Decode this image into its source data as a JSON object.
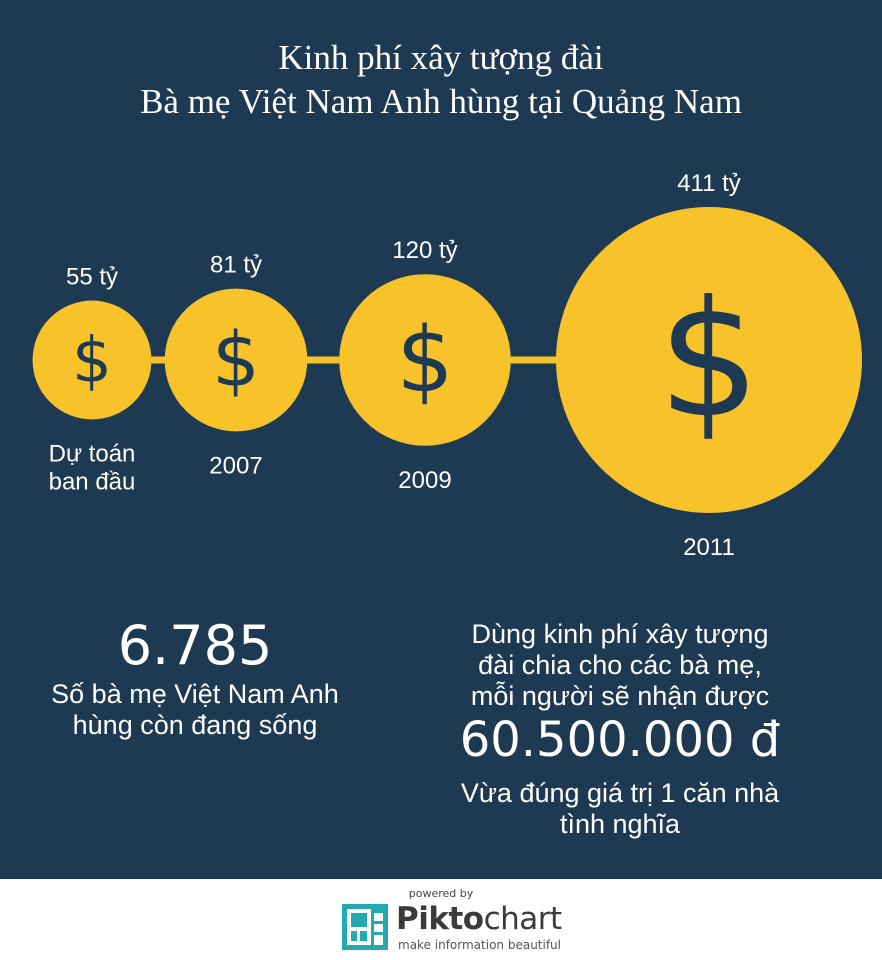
{
  "title": {
    "line1": "Kinh phí xây tượng đài",
    "line2": "Bà mẹ Việt Nam Anh hùng tại Quảng Nam"
  },
  "currency_symbol": "$",
  "chart_data": {
    "type": "bubble",
    "categories": [
      "Dự toán ban đầu",
      "2007",
      "2009",
      "2011"
    ],
    "values": [
      55,
      81,
      120,
      411
    ],
    "value_labels": [
      "55 tỷ",
      "81 tỷ",
      "120 tỷ",
      "411 tỷ"
    ],
    "category_lines": [
      [
        "Dự toán",
        "ban đầu"
      ],
      [
        "2007"
      ],
      [
        "2009"
      ],
      [
        "2011"
      ]
    ]
  },
  "stats": {
    "mothers": {
      "number": "6.785",
      "lines": [
        "Số bà mẹ Việt Nam Anh",
        "hùng còn đang sống"
      ]
    },
    "per_mother": {
      "intro_lines": [
        "Dùng kinh phí xây tượng",
        "đài chia cho các bà mẹ,",
        "mỗi người sẽ nhận được"
      ],
      "number": "60.500.000 đ",
      "note_lines": [
        "Vừa đúng giá trị 1 căn nhà",
        "tình nghĩa"
      ]
    }
  },
  "footer": {
    "powered_by": "powered by",
    "brand_part1": "Pikto",
    "brand_part2": "chart",
    "tagline": "make information beautiful"
  },
  "colors": {
    "background": "#1e3a52",
    "coin": "#f8c22b",
    "dollar": "#1e3a52",
    "text": "#ffffff",
    "logo_teal": "#25a9b0"
  }
}
